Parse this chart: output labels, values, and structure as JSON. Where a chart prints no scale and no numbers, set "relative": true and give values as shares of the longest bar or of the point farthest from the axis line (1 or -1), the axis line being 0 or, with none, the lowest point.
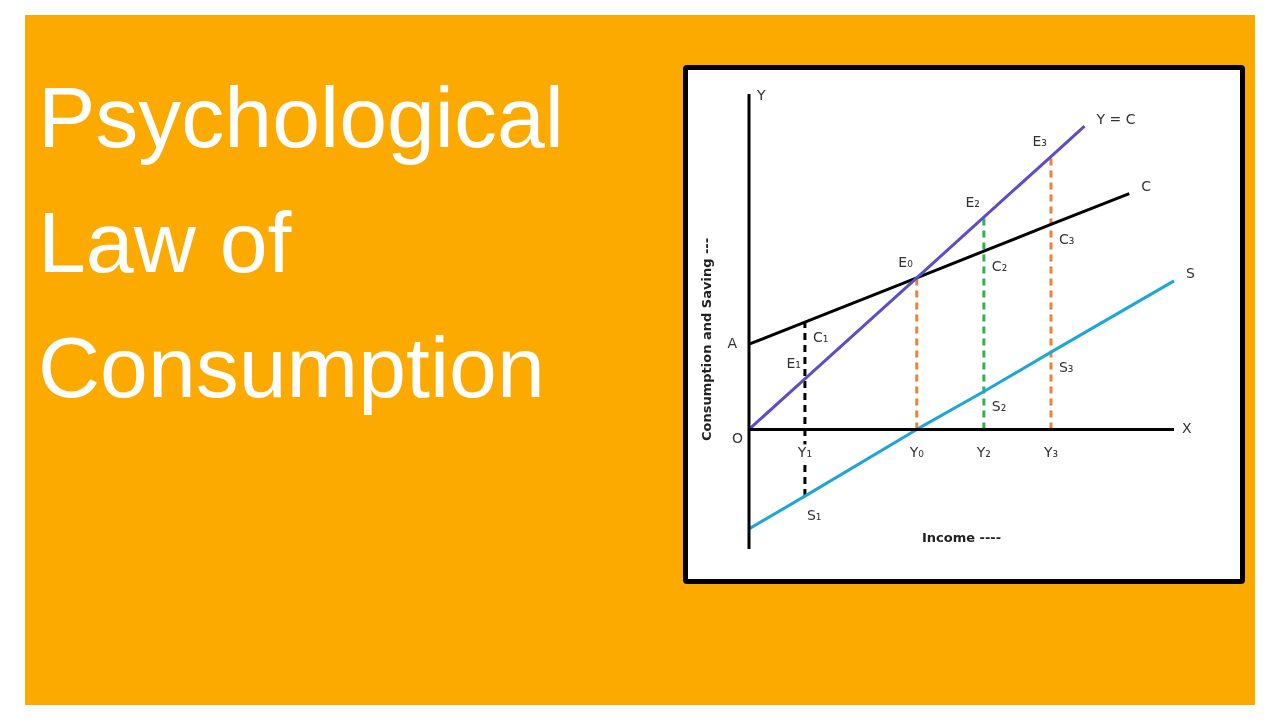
{
  "chart_data": {
    "type": "line",
    "title": "Psychological Law of Consumption",
    "xlabel": "Income ----",
    "ylabel": "Consumption and Saving ---",
    "relative": true,
    "legend": false,
    "marker": "none",
    "line_style": "solid",
    "categories": [
      null,
      null,
      null,
      null,
      null,
      "Y₁",
      null,
      null,
      null,
      null,
      null,
      null,
      null,
      null,
      null,
      "Y₀",
      null,
      null,
      null,
      null,
      null,
      "Y₂",
      null,
      null,
      null,
      null,
      null,
      "Y₃",
      null,
      null,
      null,
      null,
      null,
      null,
      null,
      null,
      null,
      null,
      null
    ],
    "series": [
      {
        "name": "Y = C",
        "color": "#5a4fc8",
        "values": [
          0,
          null,
          null,
          null,
          null,
          0.167,
          null,
          null,
          null,
          null,
          null,
          null,
          null,
          null,
          null,
          0.5,
          null,
          null,
          null,
          null,
          null,
          0.7,
          null,
          null,
          null,
          null,
          null,
          0.9,
          null,
          null,
          1,
          null,
          null,
          null,
          null,
          null,
          null,
          null,
          null
        ]
      },
      {
        "name": "C",
        "color": "#000000",
        "values": [
          0.281,
          null,
          null,
          null,
          null,
          0.354,
          null,
          null,
          null,
          null,
          null,
          null,
          null,
          null,
          null,
          0.5,
          null,
          null,
          null,
          null,
          null,
          0.588,
          null,
          null,
          null,
          null,
          null,
          0.676,
          null,
          null,
          null,
          null,
          null,
          null,
          0.778,
          null,
          null,
          null,
          null
        ]
      },
      {
        "name": "S",
        "color": "#1ea5db",
        "values": [
          -0.328,
          null,
          null,
          null,
          null,
          -0.22,
          null,
          null,
          null,
          null,
          null,
          null,
          null,
          null,
          null,
          0,
          null,
          null,
          null,
          null,
          null,
          0.125,
          null,
          null,
          null,
          null,
          null,
          0.255,
          null,
          null,
          null,
          null,
          null,
          null,
          null,
          null,
          null,
          null,
          0.49
        ]
      }
    ],
    "ref_lines": [
      {
        "axis": "x",
        "value": "Y₁",
        "color": "#000000",
        "line_style": "dashed"
      },
      {
        "axis": "x",
        "value": "Y₀",
        "color": "#e8833a",
        "line_style": "dashed"
      },
      {
        "axis": "x",
        "value": "Y₂",
        "color": "#2db34a",
        "line_style": "dashed"
      },
      {
        "axis": "x",
        "value": "Y₃",
        "color": "#e8833a",
        "line_style": "dashed"
      }
    ],
    "annotations": [
      "Y",
      "X",
      "O",
      "A",
      {
        "text": "E₁",
        "x": "Y₁",
        "y": 0.167
      },
      {
        "text": "C₁",
        "x": "Y₁",
        "y": 0.354
      },
      {
        "text": "S₁",
        "x": "Y₁",
        "y": -0.22
      },
      {
        "text": "E₀",
        "x": "Y₀",
        "y": 0.5
      },
      {
        "text": "E₂",
        "x": "Y₂",
        "y": 0.7
      },
      {
        "text": "C₂",
        "x": "Y₂",
        "y": 0.588
      },
      {
        "text": "S₂",
        "x": "Y₂",
        "y": 0.125
      },
      {
        "text": "E₃",
        "x": "Y₃",
        "y": 0.9
      },
      {
        "text": "C₃",
        "x": "Y₃",
        "y": 0.676
      },
      {
        "text": "S₃",
        "x": "Y₃",
        "y": 0.255
      }
    ]
  }
}
